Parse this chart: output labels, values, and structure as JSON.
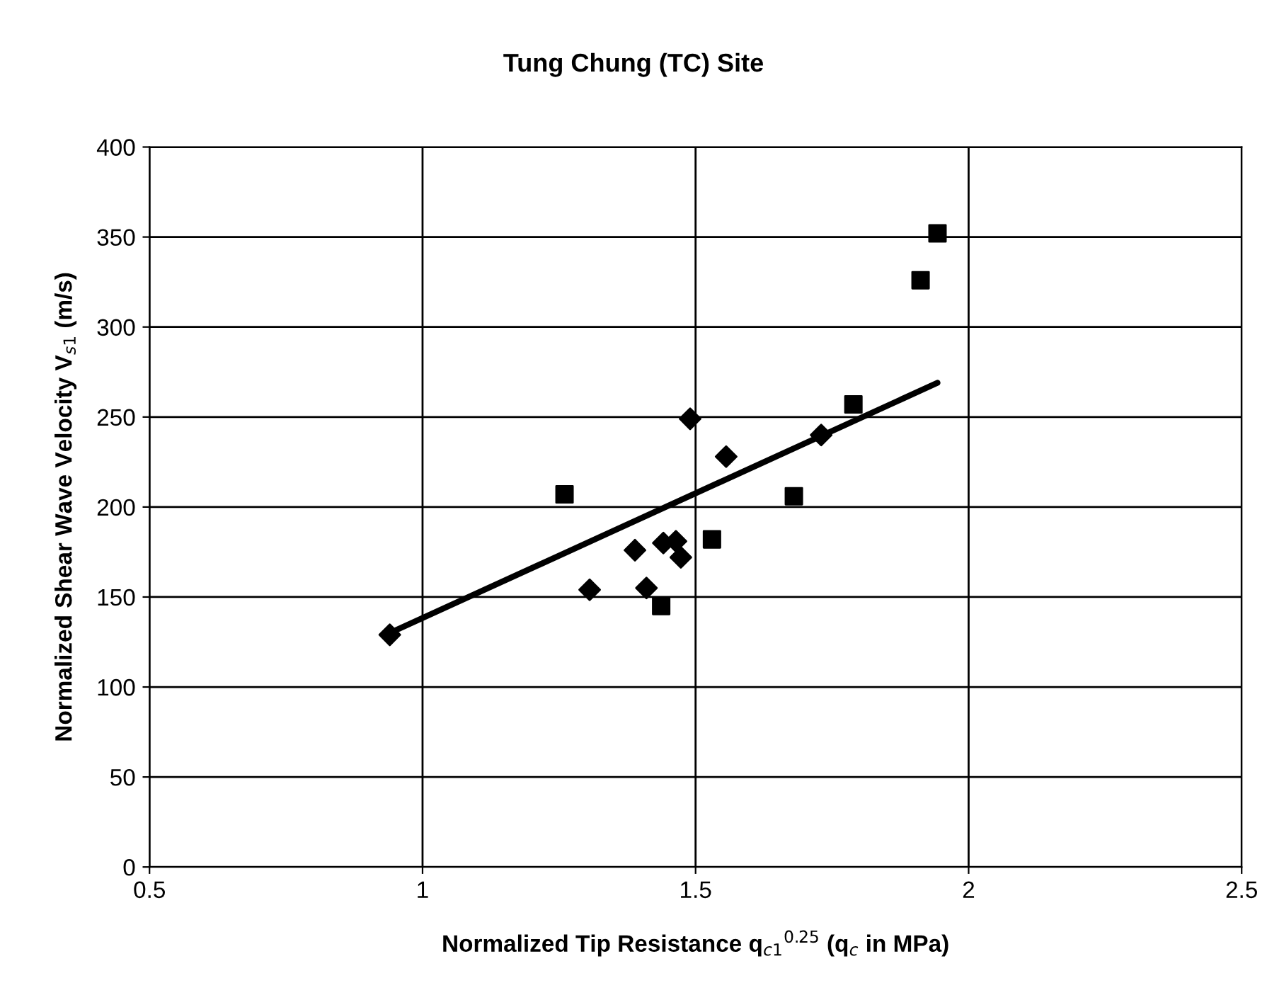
{
  "chart_data": {
    "type": "scatter",
    "title": "Tung Chung (TC) Site",
    "xlabel": "Normalized Tip Resistance q$_{c1}$$^{0.25}$ (q$_{c}$ in MPa)",
    "ylabel": "Normalized Shear Wave Velocity V$_{s1}$ (m/s)",
    "xlim": [
      0.5,
      2.5
    ],
    "xticks": [
      0.5,
      1,
      1.5,
      2,
      2.5
    ],
    "ylim": [
      0,
      400
    ],
    "yticks": [
      0,
      50,
      100,
      150,
      200,
      250,
      300,
      350,
      400
    ],
    "grid": true,
    "legend": false,
    "series": [
      {
        "marker": "diamond",
        "color": "#000000",
        "x": [
          0.94,
          1.49,
          1.556,
          1.73,
          1.389,
          1.441,
          1.464,
          1.473,
          1.306,
          1.41
        ],
        "values": [
          129,
          249,
          228,
          240,
          176,
          180,
          181,
          172,
          154,
          155
        ]
      },
      {
        "marker": "square",
        "color": "#000000",
        "x": [
          1.26,
          1.437,
          1.53,
          1.68,
          1.789,
          1.912,
          1.943
        ],
        "values": [
          207,
          145,
          182,
          206,
          257,
          326,
          352
        ]
      },
      {
        "type": "line",
        "marker": "none",
        "line_style": "solid",
        "color": "#000000",
        "x": [
          0.94,
          1.943
        ],
        "values": [
          130,
          269
        ]
      }
    ]
  }
}
